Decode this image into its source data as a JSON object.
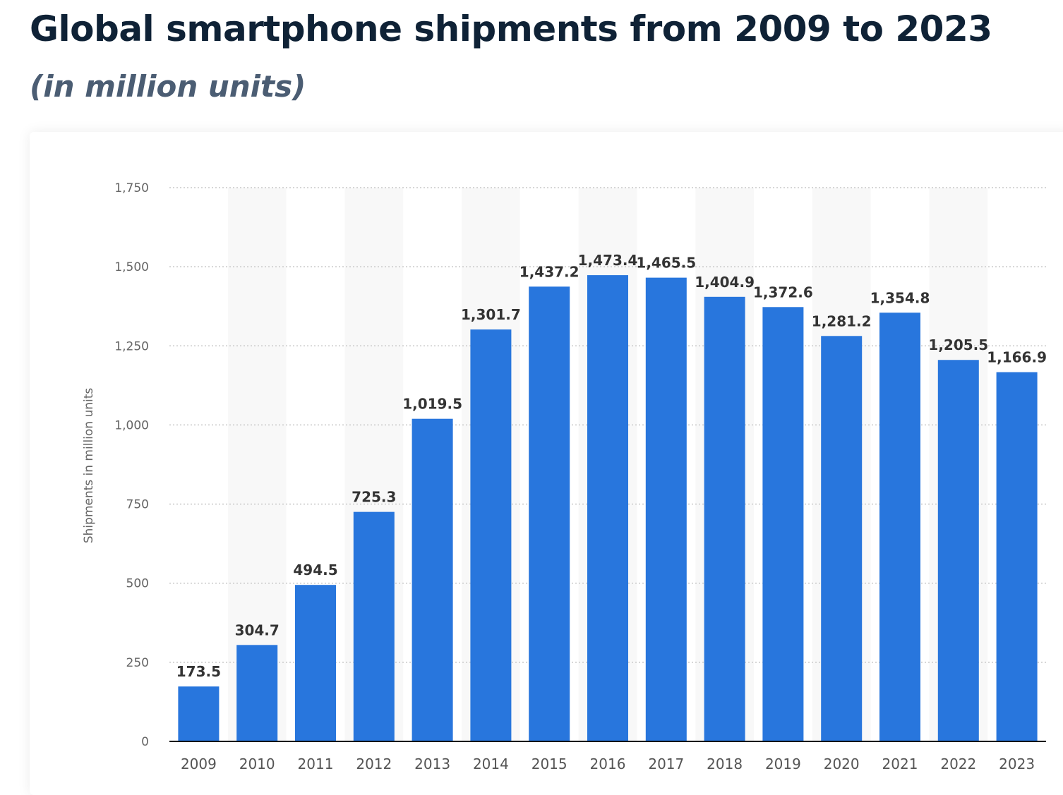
{
  "header": {
    "title": "Global smartphone shipments from 2009 to 2023",
    "subtitle": "(in million units)"
  },
  "chart_data": {
    "type": "bar",
    "ylabel": "Shipments in million units",
    "xlabel": "",
    "ylim": [
      0,
      1750
    ],
    "yticks": [
      0,
      250,
      500,
      750,
      1000,
      1250,
      1500,
      1750
    ],
    "ytick_labels": [
      "0",
      "250",
      "500",
      "750",
      "1,000",
      "1,250",
      "1,500",
      "1,750"
    ],
    "grid": true,
    "categories": [
      "2009",
      "2010",
      "2011",
      "2012",
      "2013",
      "2014",
      "2015",
      "2016",
      "2017",
      "2018",
      "2019",
      "2020",
      "2021",
      "2022",
      "2023"
    ],
    "values": [
      173.5,
      304.7,
      494.5,
      725.3,
      1019.5,
      1301.7,
      1437.2,
      1473.4,
      1465.5,
      1404.9,
      1372.6,
      1281.2,
      1354.8,
      1205.5,
      1166.9
    ],
    "data_labels": [
      "173.5",
      "304.7",
      "494.5",
      "725.3",
      "1,019.5",
      "1,301.7",
      "1,437.2",
      "1,473.4",
      "1,465.5",
      "1,404.9",
      "1,372.6",
      "1,281.2",
      "1,354.8",
      "1,205.5",
      "1,166.9"
    ],
    "colors": {
      "bar": "#2876dd",
      "band": "#f8f8f8",
      "grid": "#c8c8c8",
      "axis": "#111111"
    }
  }
}
